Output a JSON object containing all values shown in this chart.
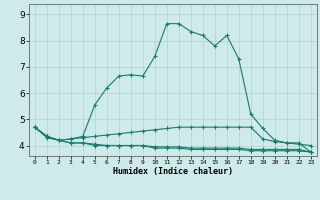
{
  "xlabel": "Humidex (Indice chaleur)",
  "bg_color": "#ceeaea",
  "grid_color": "#b8d4d4",
  "line_color": "#1a7a6e",
  "x_ticks": [
    0,
    1,
    2,
    3,
    4,
    5,
    6,
    7,
    8,
    9,
    10,
    11,
    12,
    13,
    14,
    15,
    16,
    17,
    18,
    19,
    20,
    21,
    22,
    23
  ],
  "y_ticks": [
    4,
    5,
    6,
    7,
    8,
    9
  ],
  "ylim": [
    3.6,
    9.4
  ],
  "xlim": [
    -0.5,
    23.5
  ],
  "series": [
    [
      4.7,
      4.3,
      4.2,
      4.1,
      4.1,
      4.0,
      4.0,
      4.0,
      4.0,
      4.0,
      3.9,
      3.9,
      3.9,
      3.85,
      3.85,
      3.85,
      3.85,
      3.85,
      3.8,
      3.8,
      3.8,
      3.8,
      3.8,
      3.75
    ],
    [
      4.7,
      4.35,
      4.2,
      4.25,
      4.3,
      4.35,
      4.4,
      4.45,
      4.5,
      4.55,
      4.6,
      4.65,
      4.7,
      4.7,
      4.7,
      4.7,
      4.7,
      4.7,
      4.7,
      4.25,
      4.15,
      4.1,
      4.05,
      4.0
    ],
    [
      4.7,
      4.35,
      4.2,
      4.25,
      4.35,
      5.55,
      6.2,
      6.65,
      6.7,
      6.65,
      7.4,
      8.65,
      8.65,
      8.35,
      8.2,
      7.8,
      8.2,
      7.3,
      5.2,
      4.65,
      4.2,
      4.1,
      4.1,
      3.75
    ],
    [
      4.7,
      4.35,
      4.2,
      4.1,
      4.1,
      4.05,
      4.0,
      4.0,
      4.0,
      4.0,
      3.95,
      3.95,
      3.95,
      3.9,
      3.9,
      3.9,
      3.9,
      3.9,
      3.85,
      3.85,
      3.85,
      3.85,
      3.85,
      3.75
    ]
  ]
}
